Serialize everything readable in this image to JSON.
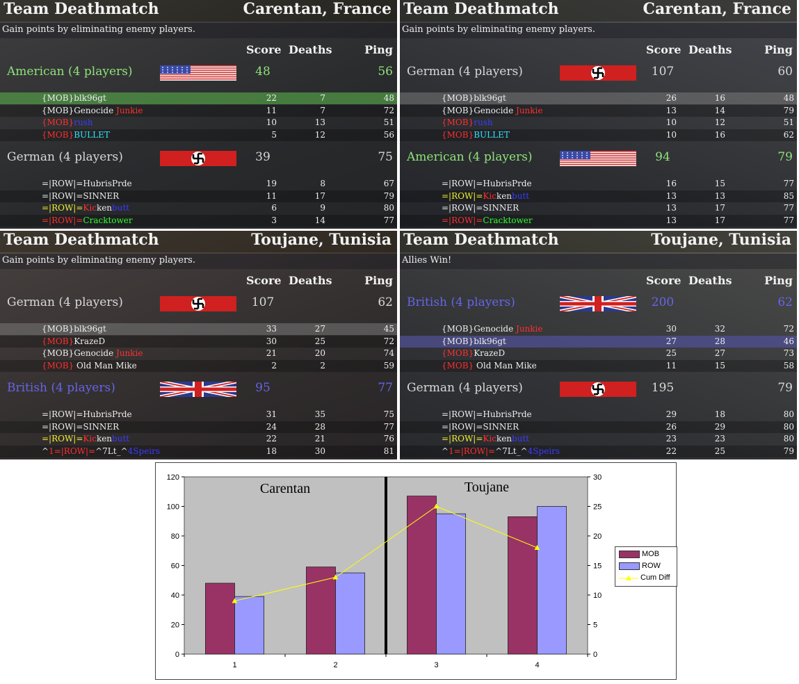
{
  "panels": [
    {
      "title": "Team Deathmatch",
      "map": "Carentan, France",
      "subtitle": "Gain points by eliminating enemy players.",
      "headers": {
        "score": "Score",
        "deaths": "Deaths",
        "ping": "Ping"
      },
      "teams": [
        {
          "name": "American (4 players)",
          "score": "48",
          "ping": "56",
          "color": "green",
          "flag": "usa-flag",
          "players": [
            {
              "segments": [
                {
                  "t": "{MOB}blk96gt",
                  "c": "w"
                }
              ],
              "score": "22",
              "deaths": "7",
              "ping": "48",
              "hl": "green"
            },
            {
              "segments": [
                {
                  "t": "{MOB}Genocide ",
                  "c": "w"
                },
                {
                  "t": "Junkie",
                  "c": "red"
                }
              ],
              "score": "11",
              "deaths": "7",
              "ping": "72"
            },
            {
              "segments": [
                {
                  "t": "{MOB}",
                  "c": "red"
                },
                {
                  "t": "rush",
                  "c": "bl2"
                }
              ],
              "score": "10",
              "deaths": "13",
              "ping": "51"
            },
            {
              "segments": [
                {
                  "t": "{MOB}",
                  "c": "red"
                },
                {
                  "t": "BULLET",
                  "c": "cy"
                }
              ],
              "score": "5",
              "deaths": "12",
              "ping": "56"
            }
          ]
        },
        {
          "name": "German (4 players)",
          "score": "39",
          "ping": "75",
          "color": "grey",
          "flag": "german-flag",
          "players": [
            {
              "segments": [
                {
                  "t": "=|ROW|=HubrisPrde",
                  "c": "w"
                }
              ],
              "score": "19",
              "deaths": "8",
              "ping": "67"
            },
            {
              "segments": [
                {
                  "t": "=|ROW|=SINNER",
                  "c": "w"
                }
              ],
              "score": "11",
              "deaths": "17",
              "ping": "79"
            },
            {
              "segments": [
                {
                  "t": "=|ROW|=",
                  "c": "yl"
                },
                {
                  "t": "Kic",
                  "c": "red"
                },
                {
                  "t": "ken",
                  "c": "w"
                },
                {
                  "t": "butt",
                  "c": "bl2"
                }
              ],
              "score": "6",
              "deaths": "9",
              "ping": "80"
            },
            {
              "segments": [
                {
                  "t": "=|ROW|=",
                  "c": "red"
                },
                {
                  "t": "Cracktower",
                  "c": "gr2"
                }
              ],
              "score": "3",
              "deaths": "14",
              "ping": "77"
            }
          ]
        }
      ]
    },
    {
      "title": "Team Deathmatch",
      "map": "Carentan, France",
      "subtitle": "Gain points by eliminating enemy players.",
      "headers": {
        "score": "Score",
        "deaths": "Deaths",
        "ping": "Ping"
      },
      "teams": [
        {
          "name": "German (4 players)",
          "score": "107",
          "ping": "60",
          "color": "grey",
          "flag": "german-flag",
          "players": [
            {
              "segments": [
                {
                  "t": "{MOB}blk96gt",
                  "c": "w"
                }
              ],
              "score": "26",
              "deaths": "16",
              "ping": "48",
              "hl": "grey"
            },
            {
              "segments": [
                {
                  "t": "{MOB}Genocide ",
                  "c": "w"
                },
                {
                  "t": "Junkie",
                  "c": "red"
                }
              ],
              "score": "13",
              "deaths": "14",
              "ping": "79"
            },
            {
              "segments": [
                {
                  "t": "{MOB}",
                  "c": "red"
                },
                {
                  "t": "rush",
                  "c": "bl2"
                }
              ],
              "score": "10",
              "deaths": "12",
              "ping": "51"
            },
            {
              "segments": [
                {
                  "t": "{MOB}",
                  "c": "red"
                },
                {
                  "t": "BULLET",
                  "c": "cy"
                }
              ],
              "score": "10",
              "deaths": "16",
              "ping": "62"
            }
          ]
        },
        {
          "name": "American (4 players)",
          "score": "94",
          "ping": "79",
          "color": "green",
          "flag": "usa-flag",
          "players": [
            {
              "segments": [
                {
                  "t": "=|ROW|=HubrisPrde",
                  "c": "w"
                }
              ],
              "score": "16",
              "deaths": "15",
              "ping": "77"
            },
            {
              "segments": [
                {
                  "t": "=|ROW|=",
                  "c": "yl"
                },
                {
                  "t": "Kic",
                  "c": "red"
                },
                {
                  "t": "ken",
                  "c": "w"
                },
                {
                  "t": "butt",
                  "c": "bl2"
                }
              ],
              "score": "13",
              "deaths": "13",
              "ping": "85"
            },
            {
              "segments": [
                {
                  "t": "=|ROW|=SINNER",
                  "c": "w"
                }
              ],
              "score": "13",
              "deaths": "17",
              "ping": "77"
            },
            {
              "segments": [
                {
                  "t": "=|ROW|=",
                  "c": "red"
                },
                {
                  "t": "Cracktower",
                  "c": "gr2"
                }
              ],
              "score": "13",
              "deaths": "17",
              "ping": "77"
            }
          ]
        }
      ]
    },
    {
      "title": "Team Deathmatch",
      "map": "Toujane, Tunisia",
      "subtitle": "Gain points by eliminating enemy players.",
      "headers": {
        "score": "Score",
        "deaths": "Deaths",
        "ping": "Ping"
      },
      "teams": [
        {
          "name": "German (4 players)",
          "score": "107",
          "ping": "62",
          "color": "grey",
          "flag": "german-flag",
          "players": [
            {
              "segments": [
                {
                  "t": "{MOB}blk96gt",
                  "c": "w"
                }
              ],
              "score": "33",
              "deaths": "27",
              "ping": "45",
              "hl": "grey"
            },
            {
              "segments": [
                {
                  "t": "{MOB}",
                  "c": "red"
                },
                {
                  "t": "KrazeD",
                  "c": "w"
                }
              ],
              "score": "30",
              "deaths": "25",
              "ping": "72"
            },
            {
              "segments": [
                {
                  "t": "{MOB}Genocide ",
                  "c": "w"
                },
                {
                  "t": "Junkie",
                  "c": "red"
                }
              ],
              "score": "21",
              "deaths": "20",
              "ping": "74"
            },
            {
              "segments": [
                {
                  "t": "{MOB}",
                  "c": "red"
                },
                {
                  "t": " Old Man Mike",
                  "c": "w"
                }
              ],
              "score": "2",
              "deaths": "2",
              "ping": "59"
            }
          ]
        },
        {
          "name": "British (4 players)",
          "score": "95",
          "ping": "77",
          "color": "blue",
          "flag": "uk-flag",
          "players": [
            {
              "segments": [
                {
                  "t": "=|ROW|=HubrisPrde",
                  "c": "w"
                }
              ],
              "score": "31",
              "deaths": "35",
              "ping": "75"
            },
            {
              "segments": [
                {
                  "t": "=|ROW|=SINNER",
                  "c": "w"
                }
              ],
              "score": "24",
              "deaths": "28",
              "ping": "77"
            },
            {
              "segments": [
                {
                  "t": "=|ROW|=",
                  "c": "yl"
                },
                {
                  "t": "Kic",
                  "c": "red"
                },
                {
                  "t": "ken",
                  "c": "w"
                },
                {
                  "t": "butt",
                  "c": "bl2"
                }
              ],
              "score": "22",
              "deaths": "21",
              "ping": "76"
            },
            {
              "segments": [
                {
                  "t": "^",
                  "c": "w"
                },
                {
                  "t": "1=|ROW|=",
                  "c": "red"
                },
                {
                  "t": "^7Lt_^",
                  "c": "w"
                },
                {
                  "t": "4Speirs",
                  "c": "bl2"
                }
              ],
              "score": "18",
              "deaths": "30",
              "ping": "81"
            }
          ]
        }
      ]
    },
    {
      "title": "Team Deathmatch",
      "map": "Toujane, Tunisia",
      "subtitle": "Allies Win!",
      "headers": {
        "score": "Score",
        "deaths": "Deaths",
        "ping": "Ping"
      },
      "teams": [
        {
          "name": "British (4 players)",
          "score": "200",
          "ping": "62",
          "color": "blue",
          "flag": "uk-flag",
          "players": [
            {
              "segments": [
                {
                  "t": "{MOB}Genocide ",
                  "c": "w"
                },
                {
                  "t": "Junkie",
                  "c": "red"
                }
              ],
              "score": "30",
              "deaths": "32",
              "ping": "72"
            },
            {
              "segments": [
                {
                  "t": "{MOB}blk96gt",
                  "c": "w"
                }
              ],
              "score": "27",
              "deaths": "28",
              "ping": "46",
              "hl": "blue"
            },
            {
              "segments": [
                {
                  "t": "{MOB}",
                  "c": "red"
                },
                {
                  "t": "KrazeD",
                  "c": "w"
                }
              ],
              "score": "25",
              "deaths": "27",
              "ping": "73"
            },
            {
              "segments": [
                {
                  "t": "{MOB}",
                  "c": "red"
                },
                {
                  "t": " Old Man Mike",
                  "c": "w"
                }
              ],
              "score": "11",
              "deaths": "15",
              "ping": "58"
            }
          ]
        },
        {
          "name": "German (4 players)",
          "score": "195",
          "ping": "79",
          "color": "grey",
          "flag": "german-flag",
          "players": [
            {
              "segments": [
                {
                  "t": "=|ROW|=HubrisPrde",
                  "c": "w"
                }
              ],
              "score": "29",
              "deaths": "18",
              "ping": "80"
            },
            {
              "segments": [
                {
                  "t": "=|ROW|=SINNER",
                  "c": "w"
                }
              ],
              "score": "26",
              "deaths": "29",
              "ping": "80"
            },
            {
              "segments": [
                {
                  "t": "=|ROW|=",
                  "c": "yl"
                },
                {
                  "t": "Kic",
                  "c": "red"
                },
                {
                  "t": "ken",
                  "c": "w"
                },
                {
                  "t": "butt",
                  "c": "bl2"
                }
              ],
              "score": "23",
              "deaths": "23",
              "ping": "80"
            },
            {
              "segments": [
                {
                  "t": "^",
                  "c": "w"
                },
                {
                  "t": "1=|ROW|=",
                  "c": "red"
                },
                {
                  "t": "^7Lt_^",
                  "c": "w"
                },
                {
                  "t": "4Speirs",
                  "c": "bl2"
                }
              ],
              "score": "22",
              "deaths": "25",
              "ping": "79"
            }
          ]
        }
      ]
    }
  ],
  "chart_data": {
    "type": "bar",
    "categories": [
      "1",
      "2",
      "3",
      "4"
    ],
    "series": [
      {
        "name": "MOB",
        "values": [
          48,
          59,
          107,
          93
        ],
        "color": "#993366"
      },
      {
        "name": "ROW",
        "values": [
          39,
          55,
          95,
          100
        ],
        "color": "#9999ff"
      }
    ],
    "line_series": {
      "name": "Cum Diff",
      "values": [
        9,
        13,
        25,
        18
      ],
      "axis": "right",
      "color": "#ffff00"
    },
    "annotations": [
      "Carentan",
      "Toujane"
    ],
    "ylim": [
      0,
      120
    ],
    "y2lim": [
      0,
      30
    ],
    "yticks": [
      "0",
      "20",
      "40",
      "60",
      "80",
      "100",
      "120"
    ],
    "y2ticks": [
      "0",
      "5",
      "10",
      "15",
      "20",
      "25",
      "30"
    ],
    "plot_background": "#c0c0c0",
    "grid": false,
    "legend_position": "right"
  }
}
